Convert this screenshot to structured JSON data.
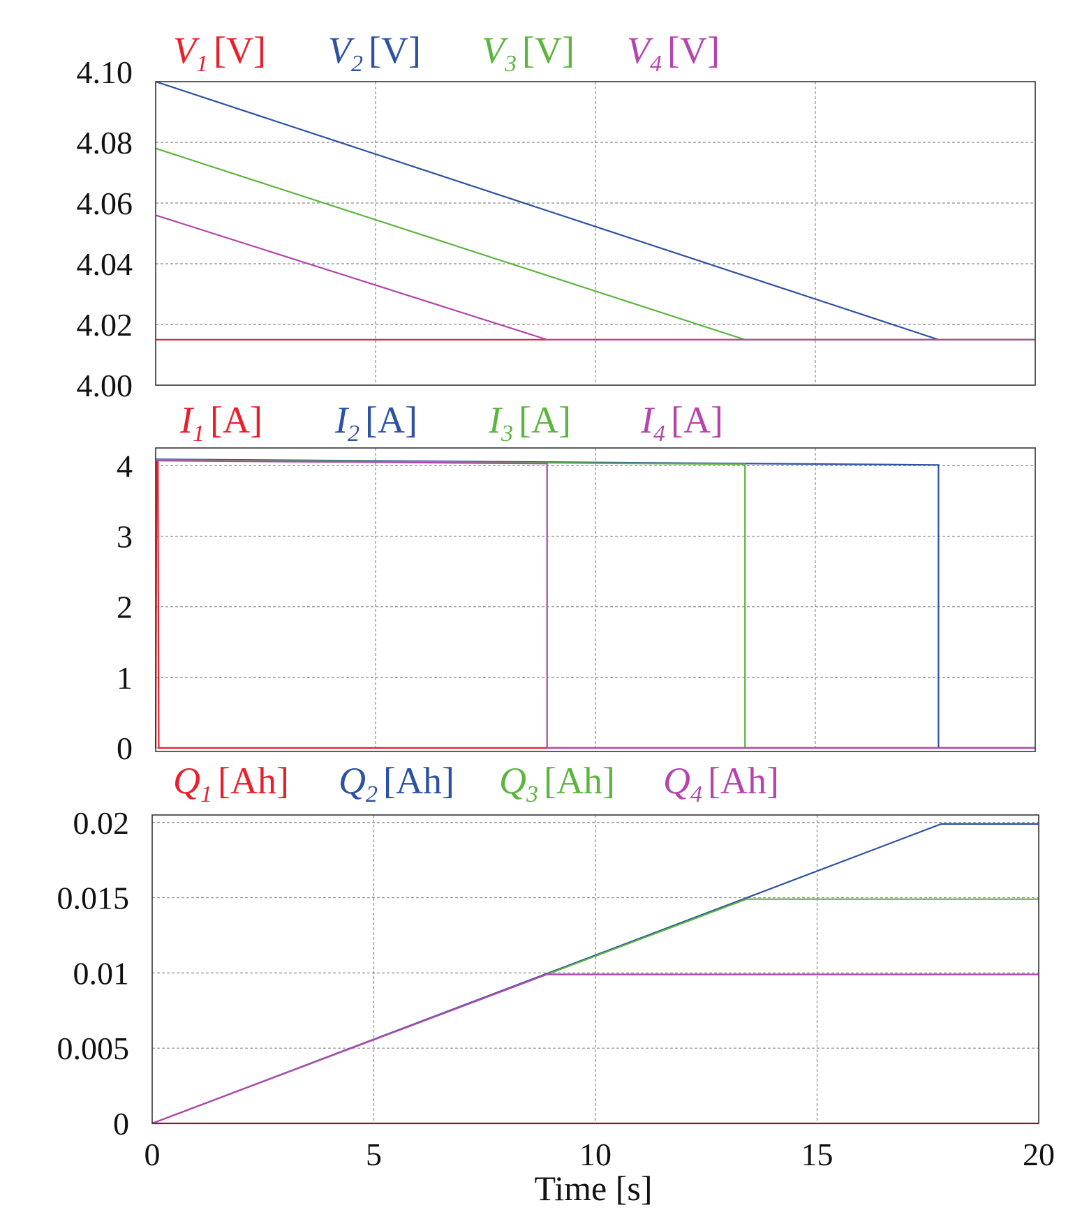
{
  "colors": {
    "series_1": "#e8202a",
    "series_2": "#2d51a3",
    "series_3": "#5cb53f",
    "series_4": "#b545ad",
    "grid": "#8a8a8a",
    "axis": "#333333"
  },
  "chart_data": [
    {
      "type": "line",
      "name": "voltage",
      "xlim": [
        0,
        20
      ],
      "ylim": [
        4.0,
        4.1
      ],
      "grid": true,
      "xticks": [
        0,
        5,
        10,
        15,
        20
      ],
      "yticks": [
        4.0,
        4.02,
        4.04,
        4.06,
        4.08,
        4.1
      ],
      "ytick_labels": [
        "4.00",
        "4.02",
        "4.04",
        "4.06",
        "4.08",
        "4.10"
      ],
      "legend_placement": "top",
      "series": [
        {
          "name": "V1 [V]",
          "symbol": "V",
          "sub": "1",
          "unit": "[V]",
          "points": [
            [
              0,
              4.015
            ],
            [
              20,
              4.015
            ]
          ]
        },
        {
          "name": "V2 [V]",
          "symbol": "V",
          "sub": "2",
          "unit": "[V]",
          "points": [
            [
              0,
              4.1
            ],
            [
              17.8,
              4.015
            ],
            [
              20,
              4.015
            ]
          ]
        },
        {
          "name": "V3 [V]",
          "symbol": "V",
          "sub": "3",
          "unit": "[V]",
          "points": [
            [
              0,
              4.078
            ],
            [
              13.4,
              4.015
            ],
            [
              20,
              4.015
            ]
          ]
        },
        {
          "name": "V4 [V]",
          "symbol": "V",
          "sub": "4",
          "unit": "[V]",
          "points": [
            [
              0,
              4.056
            ],
            [
              8.9,
              4.015
            ],
            [
              20,
              4.015
            ]
          ]
        }
      ]
    },
    {
      "type": "line",
      "name": "current",
      "xlim": [
        0,
        20
      ],
      "ylim": [
        -0.05,
        4.25
      ],
      "grid": true,
      "xticks": [
        0,
        5,
        10,
        15,
        20
      ],
      "yticks": [
        0,
        1,
        2,
        3,
        4
      ],
      "ytick_labels": [
        "0",
        "1",
        "2",
        "3",
        "4"
      ],
      "legend_placement": "top",
      "series": [
        {
          "name": "I1 [A]",
          "symbol": "I",
          "sub": "1",
          "unit": "[A]",
          "points": [
            [
              0,
              0
            ],
            [
              0.02,
              4.05
            ],
            [
              0.05,
              4.05
            ],
            [
              0.07,
              0
            ],
            [
              20,
              0
            ]
          ]
        },
        {
          "name": "I2 [A]",
          "symbol": "I",
          "sub": "2",
          "unit": "[A]",
          "points": [
            [
              0,
              4.09
            ],
            [
              17.8,
              4.01
            ],
            [
              17.8,
              0
            ],
            [
              20,
              0
            ]
          ]
        },
        {
          "name": "I3 [A]",
          "symbol": "I",
          "sub": "3",
          "unit": "[A]",
          "points": [
            [
              0,
              4.08
            ],
            [
              13.4,
              4.02
            ],
            [
              13.4,
              0
            ],
            [
              20,
              0
            ]
          ]
        },
        {
          "name": "I4 [A]",
          "symbol": "I",
          "sub": "4",
          "unit": "[A]",
          "points": [
            [
              0,
              4.07
            ],
            [
              8.9,
              4.03
            ],
            [
              8.9,
              0
            ],
            [
              20,
              0
            ]
          ]
        }
      ]
    },
    {
      "type": "line",
      "name": "charge",
      "xlim": [
        0,
        20
      ],
      "ylim": [
        0,
        0.0205
      ],
      "grid": true,
      "xticks": [
        0,
        5,
        10,
        15,
        20
      ],
      "xtick_labels": [
        "0",
        "5",
        "10",
        "15",
        "20"
      ],
      "yticks": [
        0,
        0.005,
        0.01,
        0.015,
        0.02
      ],
      "ytick_labels": [
        "0",
        "0.005",
        "0.01",
        "0.015",
        "0.02"
      ],
      "xlabel": "Time [s]",
      "legend_placement": "top",
      "series": [
        {
          "name": "Q1 [Ah]",
          "symbol": "Q",
          "sub": "1",
          "unit": "[Ah]",
          "points": [
            [
              0,
              0
            ],
            [
              20,
              0
            ]
          ]
        },
        {
          "name": "Q2 [Ah]",
          "symbol": "Q",
          "sub": "2",
          "unit": "[Ah]",
          "points": [
            [
              0,
              0
            ],
            [
              17.8,
              0.0199
            ],
            [
              20,
              0.0199
            ]
          ]
        },
        {
          "name": "Q3 [Ah]",
          "symbol": "Q",
          "sub": "3",
          "unit": "[Ah]",
          "points": [
            [
              0,
              0
            ],
            [
              13.4,
              0.0149
            ],
            [
              20,
              0.0149
            ]
          ]
        },
        {
          "name": "Q4 [Ah]",
          "symbol": "Q",
          "sub": "4",
          "unit": "[Ah]",
          "points": [
            [
              0,
              0
            ],
            [
              8.9,
              0.0099
            ],
            [
              20,
              0.0099
            ]
          ]
        }
      ]
    }
  ]
}
